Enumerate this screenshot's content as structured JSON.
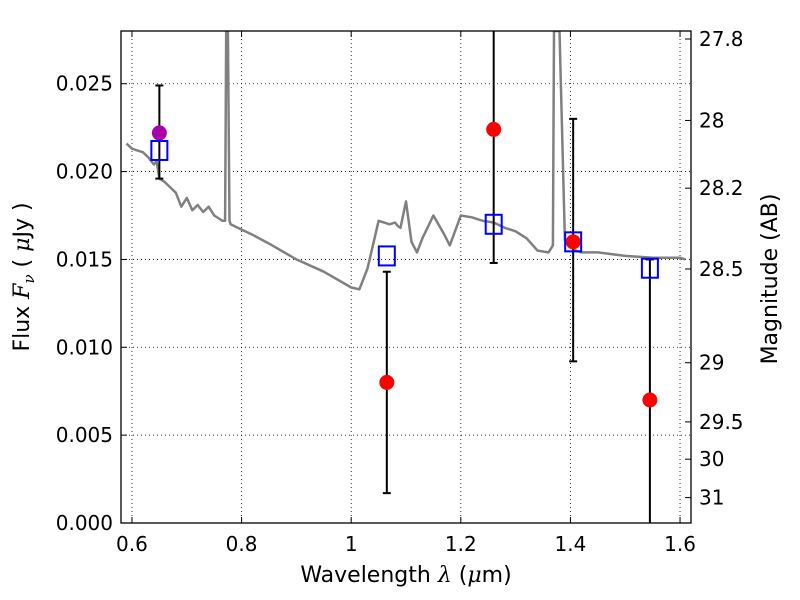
{
  "chart_data": {
    "type": "scatter",
    "xlabel": {
      "prefix": "Wavelength  ",
      "symbol": "λ",
      "units_open": " (",
      "mu": "μ",
      "units_close": "m)"
    },
    "ylabel": {
      "prefix": "Flux  ",
      "symbol": "F",
      "sub": "ν",
      "units_open": "  ( ",
      "mu": "μ",
      "units_close": "Jy )"
    },
    "y2label": "Magnitude (AB)",
    "xlim": [
      0.58,
      1.62
    ],
    "ylim": [
      0.0,
      0.028
    ],
    "grid": true,
    "x_ticks": [
      {
        "v": 0.6,
        "label": "0.6"
      },
      {
        "v": 0.8,
        "label": "0.8"
      },
      {
        "v": 1.0,
        "label": "1"
      },
      {
        "v": 1.2,
        "label": "1.2"
      },
      {
        "v": 1.4,
        "label": "1.4"
      },
      {
        "v": 1.6,
        "label": "1.6"
      }
    ],
    "y_ticks": [
      {
        "v": 0.0,
        "label": "0.000"
      },
      {
        "v": 0.005,
        "label": "0.005"
      },
      {
        "v": 0.01,
        "label": "0.010"
      },
      {
        "v": 0.015,
        "label": "0.015"
      },
      {
        "v": 0.02,
        "label": "0.020"
      },
      {
        "v": 0.025,
        "label": "0.025"
      }
    ],
    "y2_ticks": [
      {
        "mag": 27.8,
        "label": "27.8"
      },
      {
        "mag": 28.0,
        "label": "28"
      },
      {
        "mag": 28.2,
        "label": "28.2"
      },
      {
        "mag": 28.5,
        "label": "28.5"
      },
      {
        "mag": 29.0,
        "label": "29"
      },
      {
        "mag": 29.5,
        "label": "29.5"
      },
      {
        "mag": 30.0,
        "label": "30"
      },
      {
        "mag": 31.0,
        "label": "31"
      }
    ],
    "series": [
      {
        "kind": "line",
        "color": "#808080",
        "x": [
          0.59,
          0.6,
          0.61,
          0.62,
          0.63,
          0.64,
          0.645,
          0.65,
          0.66,
          0.67,
          0.68,
          0.69,
          0.7,
          0.71,
          0.72,
          0.73,
          0.74,
          0.75,
          0.76,
          0.765,
          0.77,
          0.772,
          0.775,
          0.778,
          0.78,
          0.8,
          0.82,
          0.85,
          0.9,
          0.95,
          1.0,
          1.015,
          1.03,
          1.05,
          1.07,
          1.08,
          1.085,
          1.09,
          1.1,
          1.11,
          1.12,
          1.13,
          1.15,
          1.17,
          1.18,
          1.2,
          1.22,
          1.24,
          1.26,
          1.28,
          1.3,
          1.32,
          1.34,
          1.36,
          1.368,
          1.37,
          1.375,
          1.38,
          1.39,
          1.4,
          1.41,
          1.42,
          1.45,
          1.5,
          1.55,
          1.6,
          1.61
        ],
        "y": [
          0.0216,
          0.0213,
          0.0212,
          0.0211,
          0.0208,
          0.0204,
          0.0206,
          0.0196,
          0.0194,
          0.0191,
          0.0188,
          0.018,
          0.0185,
          0.0178,
          0.0181,
          0.0177,
          0.018,
          0.0175,
          0.0173,
          0.0172,
          0.0172,
          0.028,
          0.028,
          0.0172,
          0.017,
          0.0167,
          0.0164,
          0.0159,
          0.015,
          0.0143,
          0.0134,
          0.0133,
          0.0145,
          0.0172,
          0.017,
          0.0171,
          0.0169,
          0.0168,
          0.0183,
          0.016,
          0.0154,
          0.0162,
          0.0175,
          0.0164,
          0.0158,
          0.0175,
          0.0174,
          0.0172,
          0.0171,
          0.0168,
          0.0166,
          0.0162,
          0.0155,
          0.0154,
          0.0158,
          0.028,
          0.028,
          0.028,
          0.0161,
          0.0157,
          0.0155,
          0.0154,
          0.0154,
          0.0152,
          0.0151,
          0.0151,
          0.015
        ]
      },
      {
        "kind": "points",
        "color": "#ff0000",
        "marker": "circle",
        "x": [
          1.065,
          1.26,
          1.405,
          1.545
        ],
        "y": [
          0.008,
          0.0224,
          0.016,
          0.007
        ],
        "yerr_low": [
          0.0017,
          0.0148,
          0.0092,
          0.0
        ],
        "yerr_high": [
          0.0143,
          0.028,
          0.023,
          0.015
        ]
      },
      {
        "kind": "points",
        "color": "#aa00aa",
        "marker": "circle",
        "x": [
          0.65
        ],
        "y": [
          0.0222
        ],
        "yerr_low": [
          0.0196
        ],
        "yerr_high": [
          0.0249
        ]
      },
      {
        "kind": "points",
        "color": "#0000ff",
        "marker": "open-square",
        "x": [
          0.65,
          1.065,
          1.26,
          1.405,
          1.545
        ],
        "y": [
          0.0212,
          0.0152,
          0.017,
          0.016,
          0.0145
        ]
      }
    ]
  }
}
